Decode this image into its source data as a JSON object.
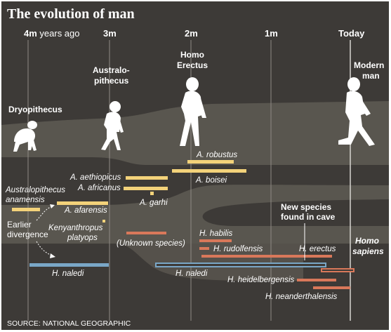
{
  "title": "The evolution of man",
  "timeline": [
    {
      "label": "4m",
      "suffix": " years ago"
    },
    {
      "label": "3m"
    },
    {
      "label": "2m"
    },
    {
      "label": "1m"
    },
    {
      "label": "Today"
    }
  ],
  "figures": {
    "dryopithecus": {
      "label": "Dryopithecus"
    },
    "australopithecus": {
      "line1": "Australo-",
      "line2": "pithecus"
    },
    "homo_erectus": {
      "line1": "Homo",
      "line2": "Erectus"
    },
    "modern_man": {
      "line1": "Modern",
      "line2": "man"
    }
  },
  "species": {
    "a_robustus": "A. robustus",
    "a_boisei": "A. boisei",
    "a_aethiopicus": "A. aethiopicus",
    "a_africanus": "A. africanus",
    "a_garhi": "A. garhi",
    "australopithecus_anamensis_1": "Australopithecus",
    "australopithecus_anamensis_2": "anamensis",
    "a_afarensis": "A. afarensis",
    "kenyanthropus_1": "Kenyanthropus",
    "kenyanthropus_2": "platyops",
    "unknown_species": "(Unknown species)",
    "h_habilis": "H. habilis",
    "h_rudolfensis": "H. rudolfensis",
    "h_erectus": "H. erectus",
    "h_naledi_left": "H. naledi",
    "h_naledi_right": "H. naledi",
    "homo_sapiens_1": "Homo",
    "homo_sapiens_2": "sapiens",
    "h_heidelbergensis": "H. heidelbergensis",
    "h_neanderthalensis": "H. neanderthalensis"
  },
  "annotations": {
    "earlier_divergence_1": "Earlier",
    "earlier_divergence_2": "divergence",
    "new_species_1": "New species",
    "new_species_2": "found in cave"
  },
  "source": "SOURCE: NATIONAL GEOGRAPHIC",
  "colors": {
    "background": "#3d3a37",
    "band": "#59564f",
    "australopith_bars": "#f3d27a",
    "homo_bars": "#d9785a",
    "naledi_bar": "#7aa7c7",
    "gridline": "#8e8a84"
  }
}
